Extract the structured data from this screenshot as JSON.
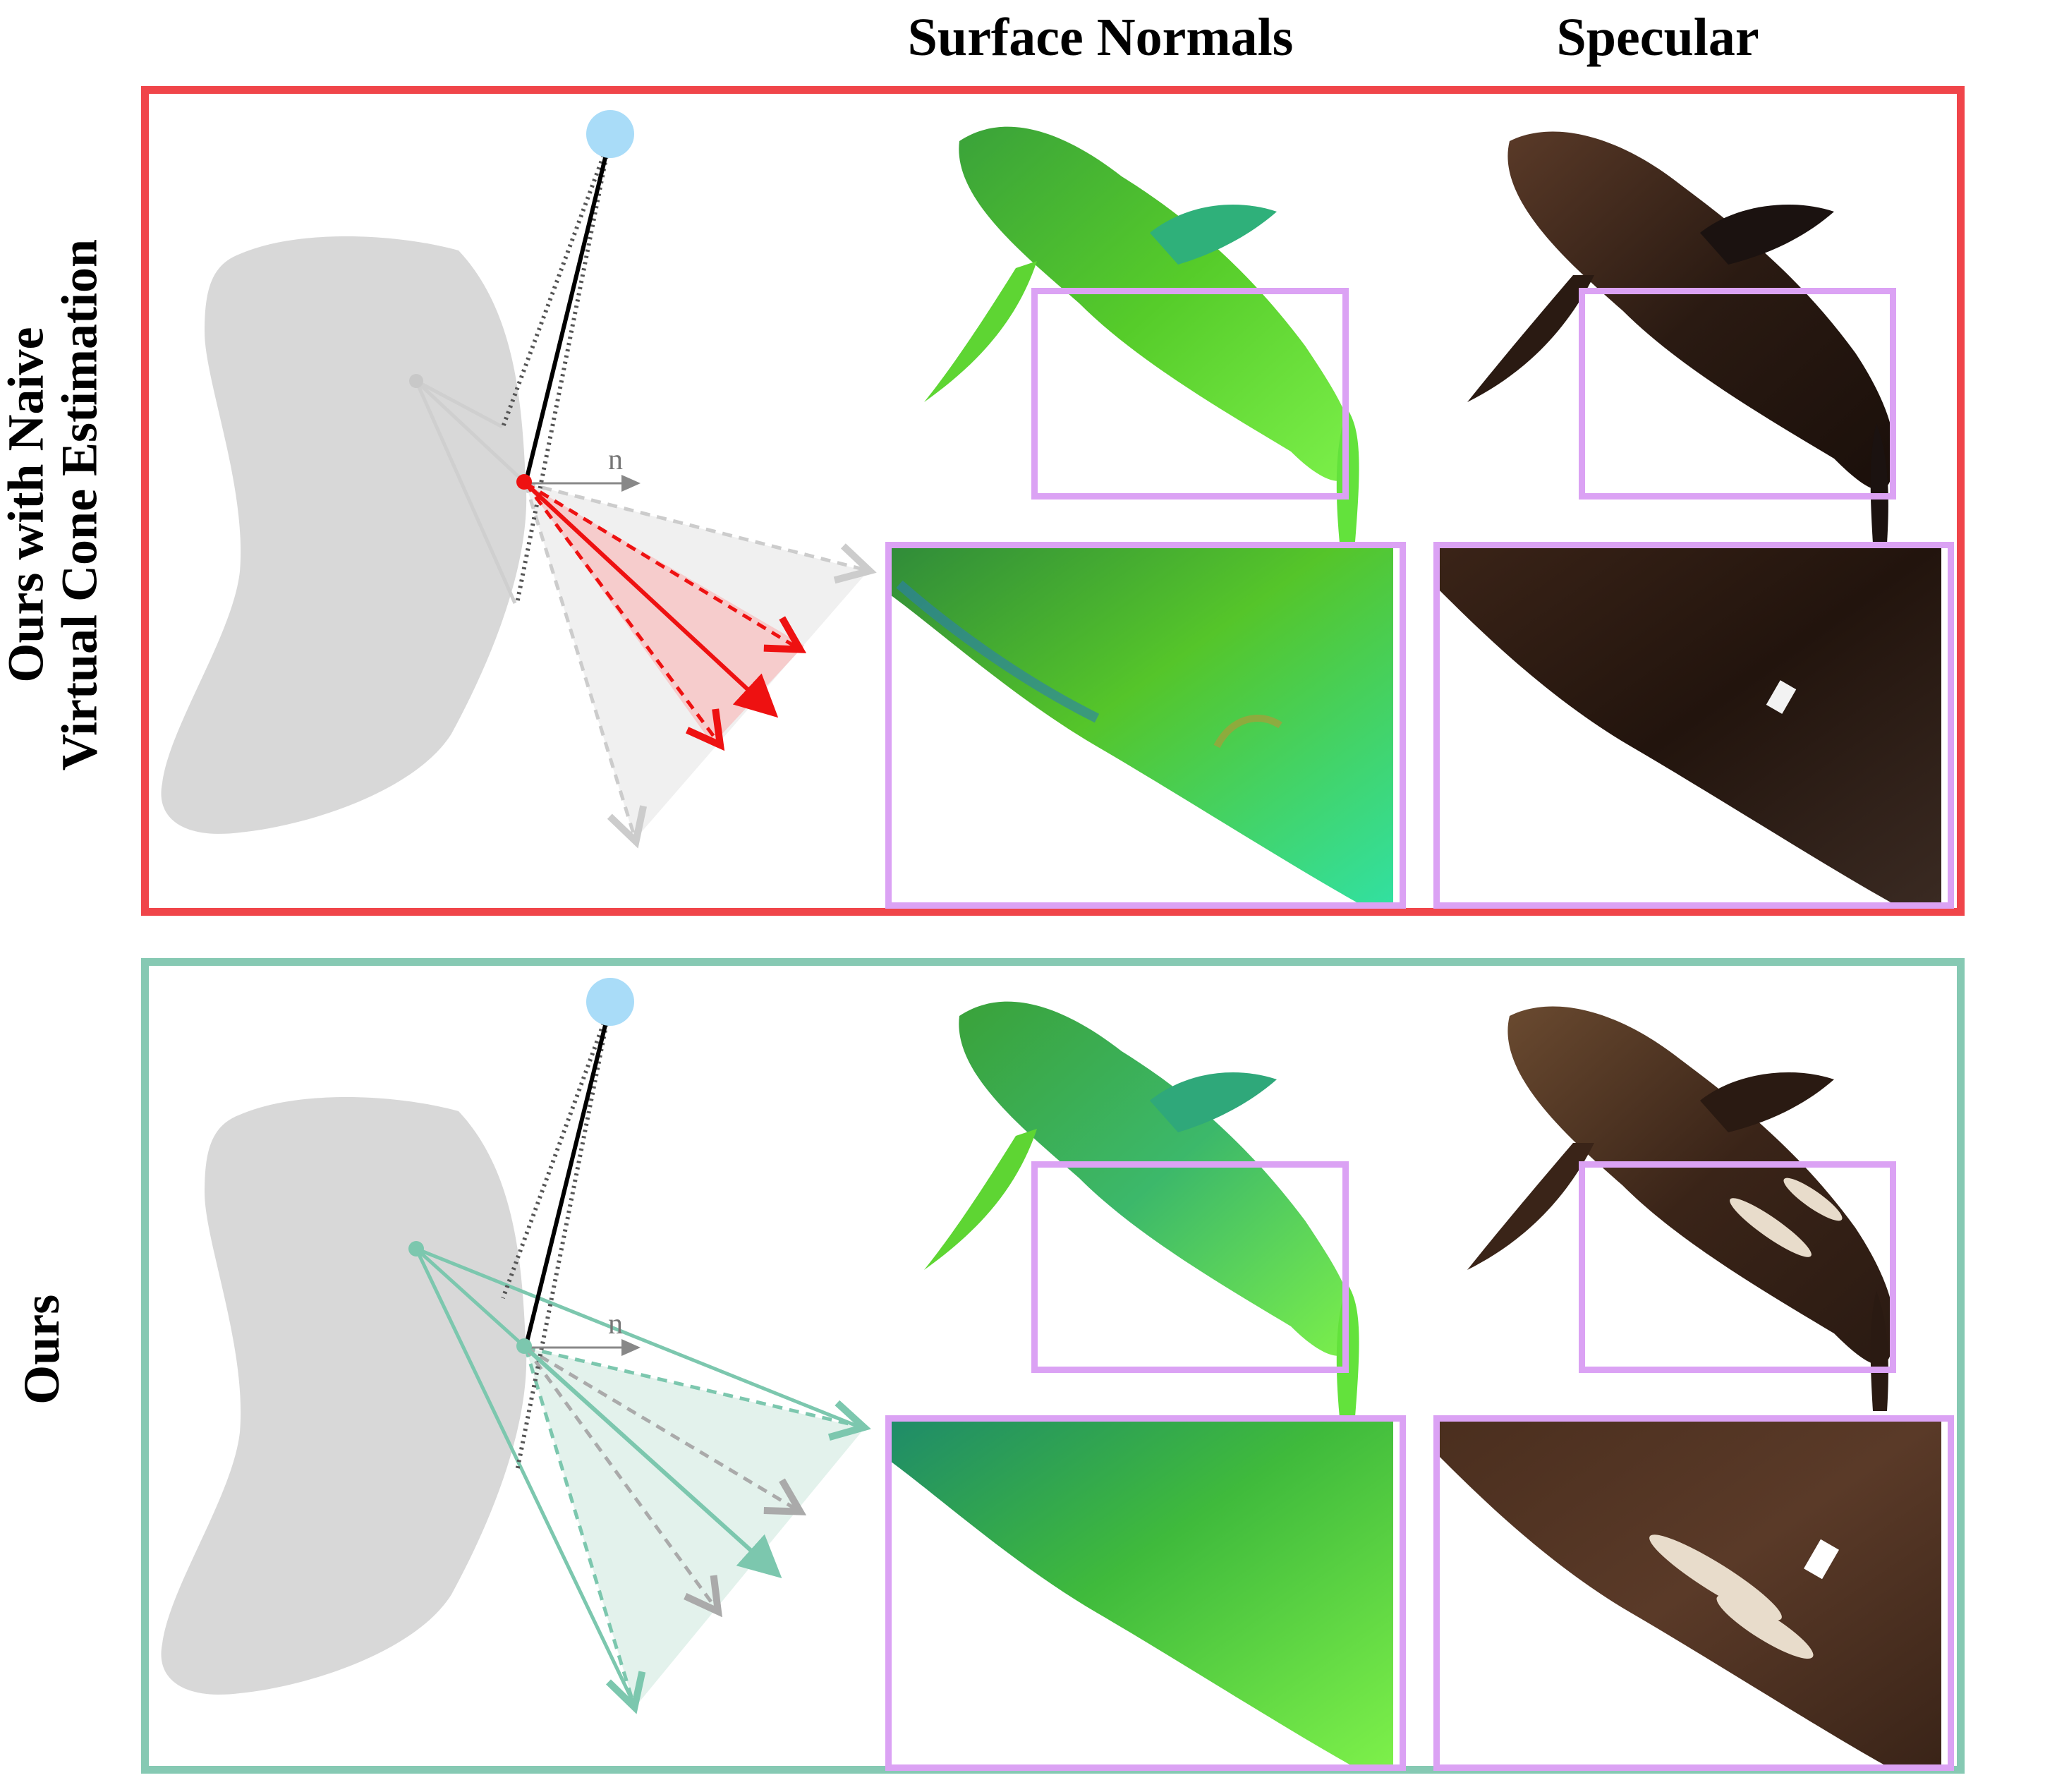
{
  "headers": {
    "surface_normals": "Surface Normals",
    "specular": "Specular"
  },
  "rows": [
    {
      "label_line1": "Ours with Naive",
      "label_line2": "Virtual Cone Estimation",
      "frame_color": "#f0454a",
      "accent_color": "#ee1111",
      "normal_label": "n"
    },
    {
      "label_line1": "Ours",
      "label_line2": "",
      "frame_color": "#86c9b3",
      "accent_color": "#7cc7ae",
      "normal_label": "n"
    }
  ],
  "colors": {
    "light": "#a9dcf8",
    "object": "#d8d8d8",
    "zoom_box": "#dba2f4",
    "normals_green": "#4fd63a",
    "specular_dark": "#2a1a12"
  }
}
